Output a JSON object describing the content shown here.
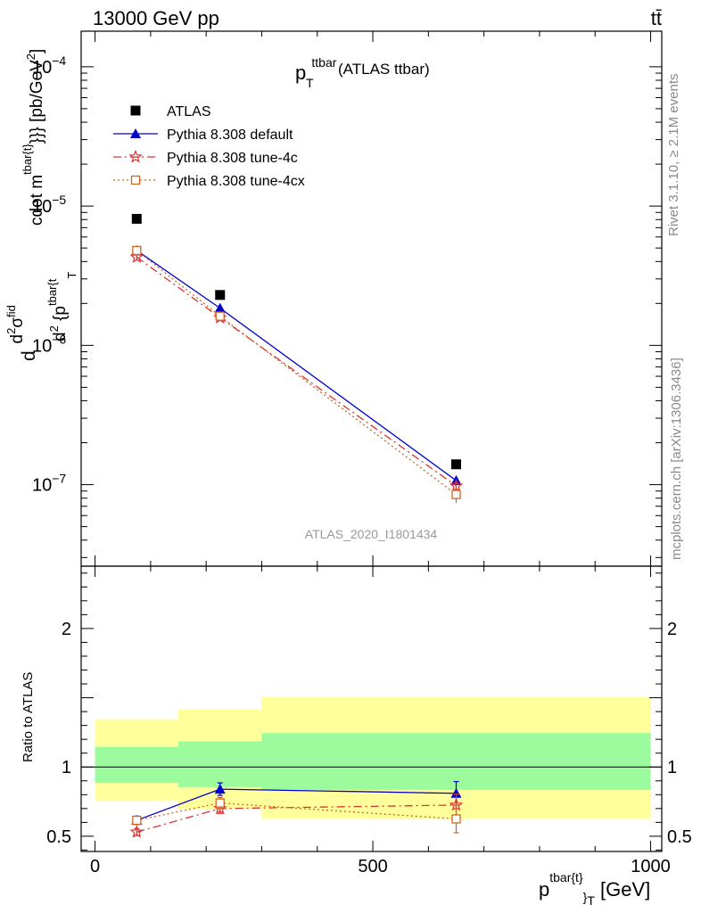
{
  "header": {
    "beam_label": "13000 GeV pp",
    "process_label": "tt̄",
    "observable_main": "p",
    "observable_sup": "ttbar",
    "observable_sub": "T",
    "observable_suffix": " (ATLAS ttbar)",
    "analysis_id": "ATLAS_2020_I1801434"
  },
  "side_labels": {
    "rivet": "Rivet 3.1.10, ≥ 2.1M events",
    "mcplots": "mcplots.cern.ch [arXiv:1306.3436]"
  },
  "axes": {
    "main_ylabel_parts": [
      "d",
      "d",
      "2",
      "σ",
      "fid",
      "d",
      "2",
      " {p",
      "tbar{t",
      "T",
      "cdot m",
      "tbar{t}",
      "}}} [pb/GeV",
      "2",
      "]"
    ],
    "ratio_ylabel": "Ratio to ATLAS",
    "xlabel_main": "p",
    "xlabel_sup": "tbar{t}",
    "xlabel_sub": "}",
    "xlabel_sub2": "T",
    "xlabel_unit": " [GeV]",
    "x_ticks": [
      "0",
      "500",
      "1000"
    ],
    "y_main_ticks": [
      {
        "base": "10",
        "exp": "−4"
      },
      {
        "base": "10",
        "exp": "−5"
      },
      {
        "base": "10",
        "exp": "−6"
      },
      {
        "base": "10",
        "exp": "−7"
      }
    ],
    "y_ratio_ticks": [
      "2",
      "1",
      "0.5"
    ]
  },
  "chart_data": [
    {
      "type": "scatter",
      "yscale": "log",
      "xlim": [
        -25,
        1020
      ],
      "ylim": [
        2.6e-08,
        0.00018
      ],
      "x": [
        75,
        225,
        650
      ],
      "series": [
        {
          "name": "ATLAS",
          "marker": "square",
          "color": "#000000",
          "values": [
            8.1e-06,
            2.3e-06,
            1.4e-07
          ]
        },
        {
          "name": "Pythia 8.308 default",
          "marker": "triangle",
          "color": "#0000cc",
          "line": "solid",
          "values": [
            4.8e-06,
            1.85e-06,
            1.07e-07
          ],
          "errors": [
            1.5e-07,
            8e-08,
            9e-09
          ]
        },
        {
          "name": "Pythia 8.308 tune-4c",
          "marker": "star",
          "color": "#dd3333",
          "line": "dashdot",
          "values": [
            4.3e-06,
            1.58e-06,
            9.8e-08
          ],
          "errors": [
            1.5e-07,
            7e-08,
            9e-09
          ]
        },
        {
          "name": "Pythia 8.308 tune-4cx",
          "marker": "open-square",
          "color": "#cc6622",
          "line": "dotted",
          "values": [
            4.8e-06,
            1.62e-06,
            8.5e-08
          ],
          "errors": [
            1.5e-07,
            8e-08,
            1.1e-08
          ]
        }
      ]
    },
    {
      "type": "scatter",
      "xlim": [
        -25,
        1020
      ],
      "ylim": [
        0.39,
        2.45
      ],
      "reference_line": 1,
      "bins": [
        [
          0,
          150
        ],
        [
          150,
          300
        ],
        [
          300,
          1000
        ]
      ],
      "band_inner": [
        [
          0.885,
          1.145
        ],
        [
          0.855,
          1.185
        ],
        [
          0.835,
          1.245
        ]
      ],
      "band_outer": [
        [
          0.755,
          1.345
        ],
        [
          0.695,
          1.415
        ],
        [
          0.625,
          1.505
        ]
      ],
      "x": [
        75,
        225,
        650
      ],
      "series": [
        {
          "name": "Pythia 8.308 default",
          "color": "#0000cc",
          "values": [
            0.615,
            0.84,
            0.81
          ],
          "errors": [
            0.03,
            0.045,
            0.085
          ]
        },
        {
          "name": "Pythia 8.308 tune-4c",
          "color": "#dd3333",
          "values": [
            0.53,
            0.7,
            0.725
          ],
          "errors": [
            0.025,
            0.035,
            0.08
          ]
        },
        {
          "name": "Pythia 8.308 tune-4cx",
          "color": "#cc6622",
          "values": [
            0.615,
            0.74,
            0.625
          ],
          "errors": [
            0.025,
            0.04,
            0.1
          ]
        }
      ]
    }
  ],
  "legend": [
    {
      "label": "ATLAS",
      "marker": "square",
      "color": "#000000",
      "line": "none"
    },
    {
      "label": "Pythia 8.308 default",
      "marker": "triangle",
      "color": "#0000cc",
      "line": "solid"
    },
    {
      "label": "Pythia 8.308 tune-4c",
      "marker": "star",
      "color": "#dd3333",
      "line": "dashdot"
    },
    {
      "label": "Pythia 8.308 tune-4cx",
      "marker": "open-square",
      "color": "#cc6622",
      "line": "dotted"
    }
  ],
  "colors": {
    "band_inner": "#9cfb9c",
    "band_outer": "#ffff9c"
  }
}
